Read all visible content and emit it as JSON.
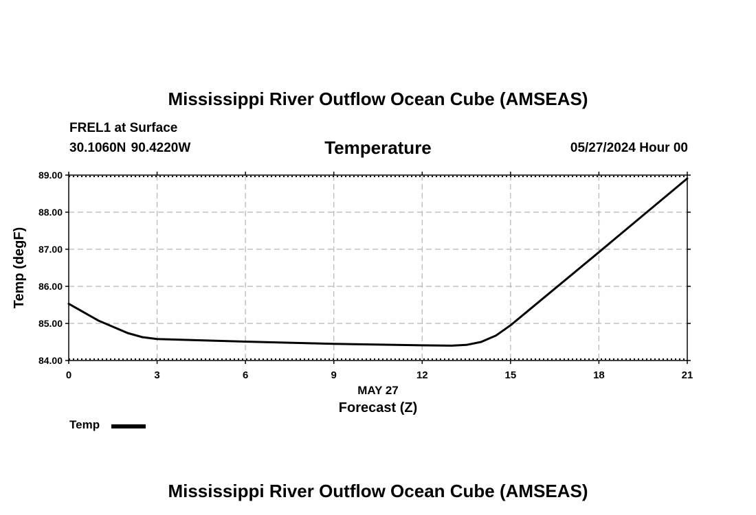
{
  "header": {
    "title": "Mississippi River Outflow Ocean Cube (AMSEAS)",
    "station": "FREL1 at Surface",
    "coords": "30.1060N  90.4220W",
    "variable": "Temperature",
    "datetime": "05/27/2024 Hour 00"
  },
  "legend": {
    "label": "Temp"
  },
  "footer": {
    "title": "Mississippi River Outflow Ocean Cube (AMSEAS)"
  },
  "chart_data": {
    "type": "line",
    "title": "Temperature",
    "xlabel": "Forecast (Z)",
    "date_label": "MAY 27",
    "ylabel": "Temp (degF)",
    "xlim": [
      0,
      21
    ],
    "ylim": [
      84,
      89
    ],
    "x_ticks": [
      0,
      3,
      6,
      9,
      12,
      15,
      18,
      21
    ],
    "x_tick_labels": [
      "0",
      "3",
      "6",
      "9",
      "12",
      "15",
      "18",
      "21"
    ],
    "y_ticks": [
      84,
      85,
      86,
      87,
      88,
      89
    ],
    "y_tick_labels": [
      "84.00",
      "85.00",
      "86.00",
      "87.00",
      "88.00",
      "89.00"
    ],
    "grid": true,
    "series": [
      {
        "name": "Temp",
        "color": "#000000",
        "x": [
          0,
          1,
          2,
          2.5,
          3,
          6,
          9,
          12,
          13,
          13.5,
          14,
          14.5,
          15,
          18,
          21
        ],
        "y": [
          85.53,
          85.08,
          84.74,
          84.63,
          84.58,
          84.51,
          84.45,
          84.41,
          84.4,
          84.42,
          84.5,
          84.67,
          84.95,
          86.92,
          88.91
        ]
      }
    ]
  }
}
